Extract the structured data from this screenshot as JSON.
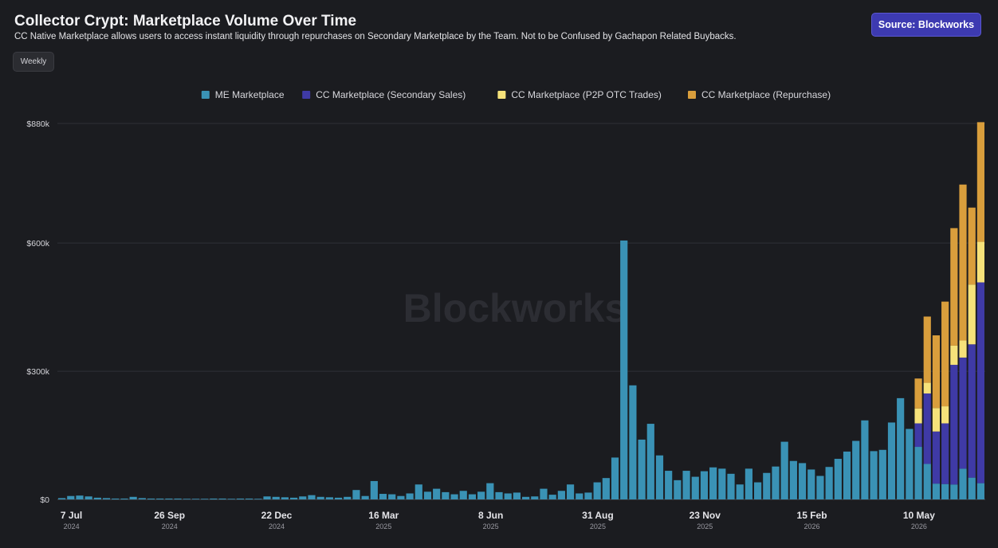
{
  "header": {
    "title": "Collector Crypt: Marketplace Volume Over Time",
    "subtitle": "CC Native Marketplace allows users to access instant liquidity through repurchases on Secondary Marketplace by the Team. Not to be Confused by Gachapon Related Buybacks.",
    "source_label": "Source: Blockworks",
    "interval_label": "Weekly"
  },
  "watermark": "Blockworks",
  "colors": {
    "background": "#1b1c20",
    "me_marketplace": "#3a92b5",
    "cc_secondary": "#3f3aa6",
    "cc_p2p": "#f6e27a",
    "cc_repurchase": "#d99e3c",
    "accent": "#3d3ab1"
  },
  "chart_data": {
    "type": "bar",
    "stacked": true,
    "legend_position": "top-center",
    "grid": true,
    "ylim": [
      0,
      880000
    ],
    "y_ticks": [
      {
        "value": 0,
        "label": "$0"
      },
      {
        "value": 300000,
        "label": "$300k"
      },
      {
        "value": 600000,
        "label": "$600k"
      },
      {
        "value": 880000,
        "label": "$880k"
      }
    ],
    "x_ticks": [
      {
        "index": 0,
        "label": "7 Jul",
        "sublabel": "2024"
      },
      {
        "index": 11,
        "label": "26 Sep",
        "sublabel": "2024"
      },
      {
        "index": 23,
        "label": "22 Dec",
        "sublabel": "2024"
      },
      {
        "index": 35,
        "label": "16 Mar",
        "sublabel": "2025"
      },
      {
        "index": 47,
        "label": "8 Jun",
        "sublabel": "2025"
      },
      {
        "index": 59,
        "label": "31 Aug",
        "sublabel": "2025"
      },
      {
        "index": 71,
        "label": "23 Nov",
        "sublabel": "2025"
      },
      {
        "index": 83,
        "label": "15 Feb",
        "sublabel": "2026"
      },
      {
        "index": 95,
        "label": "10 May",
        "sublabel": "2026"
      }
    ],
    "series": [
      {
        "name": "ME Marketplace",
        "color": "#3a92b5",
        "values": [
          3000,
          8000,
          9000,
          7000,
          4000,
          3000,
          2000,
          2000,
          6000,
          3000,
          2000,
          2000,
          2000,
          2000,
          1500,
          1500,
          1500,
          2000,
          2000,
          1500,
          2000,
          2000,
          1500,
          7000,
          6000,
          5000,
          4000,
          7000,
          10000,
          6000,
          5000,
          4000,
          6000,
          22000,
          8000,
          43000,
          13000,
          12000,
          8000,
          14000,
          35000,
          18000,
          25000,
          17000,
          12000,
          20000,
          12000,
          18000,
          38000,
          17000,
          14000,
          16000,
          6000,
          7000,
          25000,
          11000,
          20000,
          35000,
          14000,
          16000,
          40000,
          50000,
          98000,
          606000,
          267000,
          140000,
          177000,
          103000,
          67000,
          45000,
          67000,
          53000,
          66000,
          75000,
          72000,
          60000,
          35000,
          72000,
          40000,
          62000,
          77000,
          135000,
          90000,
          85000,
          70000,
          55000,
          76000,
          95000,
          112000,
          137000,
          185000,
          113000,
          116000,
          180000,
          237000,
          165000,
          123000,
          83000,
          37000,
          36000,
          35000,
          72000,
          51000,
          38000
        ]
      },
      {
        "name": "CC Marketplace (Secondary Sales)",
        "color": "#3f3aa6",
        "values": [
          0,
          0,
          0,
          0,
          0,
          0,
          0,
          0,
          0,
          0,
          0,
          0,
          0,
          0,
          0,
          0,
          0,
          0,
          0,
          0,
          0,
          0,
          0,
          0,
          0,
          0,
          0,
          0,
          0,
          0,
          0,
          0,
          0,
          0,
          0,
          0,
          0,
          0,
          0,
          0,
          0,
          0,
          0,
          0,
          0,
          0,
          0,
          0,
          0,
          0,
          0,
          0,
          0,
          0,
          0,
          0,
          0,
          0,
          0,
          0,
          0,
          0,
          0,
          0,
          0,
          0,
          0,
          0,
          0,
          0,
          0,
          0,
          0,
          0,
          0,
          0,
          0,
          0,
          0,
          0,
          0,
          0,
          0,
          0,
          0,
          0,
          0,
          0,
          0,
          0,
          0,
          0,
          0,
          0,
          0,
          0,
          55000,
          165000,
          122000,
          142000,
          280000,
          260000,
          312000,
          470000
        ]
      },
      {
        "name": "CC Marketplace (P2P OTC Trades)",
        "color": "#f6e27a",
        "values": [
          0,
          0,
          0,
          0,
          0,
          0,
          0,
          0,
          0,
          0,
          0,
          0,
          0,
          0,
          0,
          0,
          0,
          0,
          0,
          0,
          0,
          0,
          0,
          0,
          0,
          0,
          0,
          0,
          0,
          0,
          0,
          0,
          0,
          0,
          0,
          0,
          0,
          0,
          0,
          0,
          0,
          0,
          0,
          0,
          0,
          0,
          0,
          0,
          0,
          0,
          0,
          0,
          0,
          0,
          0,
          0,
          0,
          0,
          0,
          0,
          0,
          0,
          0,
          0,
          0,
          0,
          0,
          0,
          0,
          0,
          0,
          0,
          0,
          0,
          0,
          0,
          0,
          0,
          0,
          0,
          0,
          0,
          0,
          0,
          0,
          0,
          0,
          0,
          0,
          0,
          0,
          0,
          0,
          0,
          0,
          0,
          35000,
          25000,
          55000,
          40000,
          45000,
          40000,
          140000,
          95000
        ]
      },
      {
        "name": "CC Marketplace (Repurchase)",
        "color": "#d99e3c",
        "values": [
          0,
          0,
          0,
          0,
          0,
          0,
          0,
          0,
          0,
          0,
          0,
          0,
          0,
          0,
          0,
          0,
          0,
          0,
          0,
          0,
          0,
          0,
          0,
          0,
          0,
          0,
          0,
          0,
          0,
          0,
          0,
          0,
          0,
          0,
          0,
          0,
          0,
          0,
          0,
          0,
          0,
          0,
          0,
          0,
          0,
          0,
          0,
          0,
          0,
          0,
          0,
          0,
          0,
          0,
          0,
          0,
          0,
          0,
          0,
          0,
          0,
          0,
          0,
          0,
          0,
          0,
          0,
          0,
          0,
          0,
          0,
          0,
          0,
          0,
          0,
          0,
          0,
          0,
          0,
          0,
          0,
          0,
          0,
          0,
          0,
          0,
          0,
          0,
          0,
          0,
          0,
          0,
          0,
          0,
          0,
          0,
          70000,
          155000,
          170000,
          245000,
          275000,
          365000,
          180000,
          280000
        ]
      }
    ]
  }
}
